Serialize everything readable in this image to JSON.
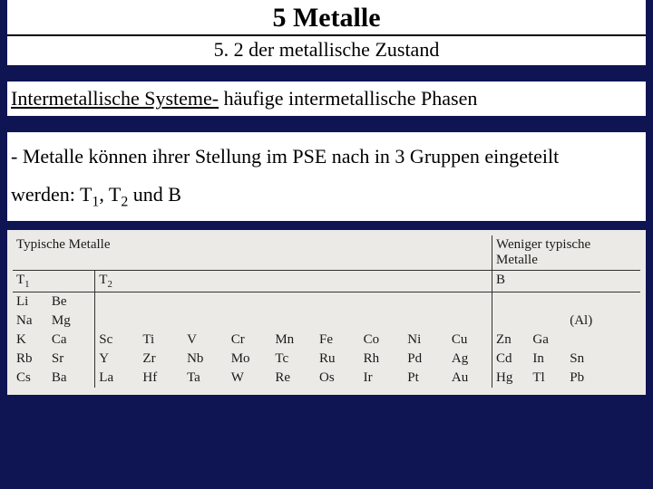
{
  "title": "5 Metalle",
  "subtitle": "5. 2 der metallische Zustand",
  "heading_underlined": "Intermetallische Systeme-",
  "heading_rest": " häufige intermetallische Phasen",
  "body_line1": "- Metalle können ihrer Stellung im PSE nach in 3 Gruppen eingeteilt",
  "body_line2_prefix": "  werden: T",
  "body_line2_mid": ", T",
  "body_line2_suffix": " und B",
  "table": {
    "hdr_left": "Typische Metalle",
    "hdr_right_l1": "Weniger typische",
    "hdr_right_l2": "Metalle",
    "sub_t1": "T",
    "sub_t1_idx": "1",
    "sub_t2": "T",
    "sub_t2_idx": "2",
    "sub_b": "B",
    "rows": [
      {
        "t1a": "Li",
        "t1b": "Be",
        "t2": [
          "",
          "",
          "",
          "",
          "",
          "",
          "",
          "",
          ""
        ],
        "b": [
          "",
          "",
          "",
          ""
        ]
      },
      {
        "t1a": "Na",
        "t1b": "Mg",
        "t2": [
          "",
          "",
          "",
          "",
          "",
          "",
          "",
          "",
          ""
        ],
        "b": [
          "",
          "",
          "(Al)",
          ""
        ]
      },
      {
        "t1a": "K",
        "t1b": "Ca",
        "t2": [
          "Sc",
          "Ti",
          "V",
          "Cr",
          "Mn",
          "Fe",
          "Co",
          "Ni",
          "Cu"
        ],
        "b": [
          "Zn",
          "Ga",
          "",
          ""
        ]
      },
      {
        "t1a": "Rb",
        "t1b": "Sr",
        "t2": [
          "Y",
          "Zr",
          "Nb",
          "Mo",
          "Tc",
          "Ru",
          "Rh",
          "Pd",
          "Ag"
        ],
        "b": [
          "Cd",
          "In",
          "Sn",
          ""
        ]
      },
      {
        "t1a": "Cs",
        "t1b": "Ba",
        "t2": [
          "La",
          "Hf",
          "Ta",
          "W",
          "Re",
          "Os",
          "Ir",
          "Pt",
          "Au"
        ],
        "b": [
          "Hg",
          "Tl",
          "Pb",
          ""
        ]
      }
    ]
  }
}
